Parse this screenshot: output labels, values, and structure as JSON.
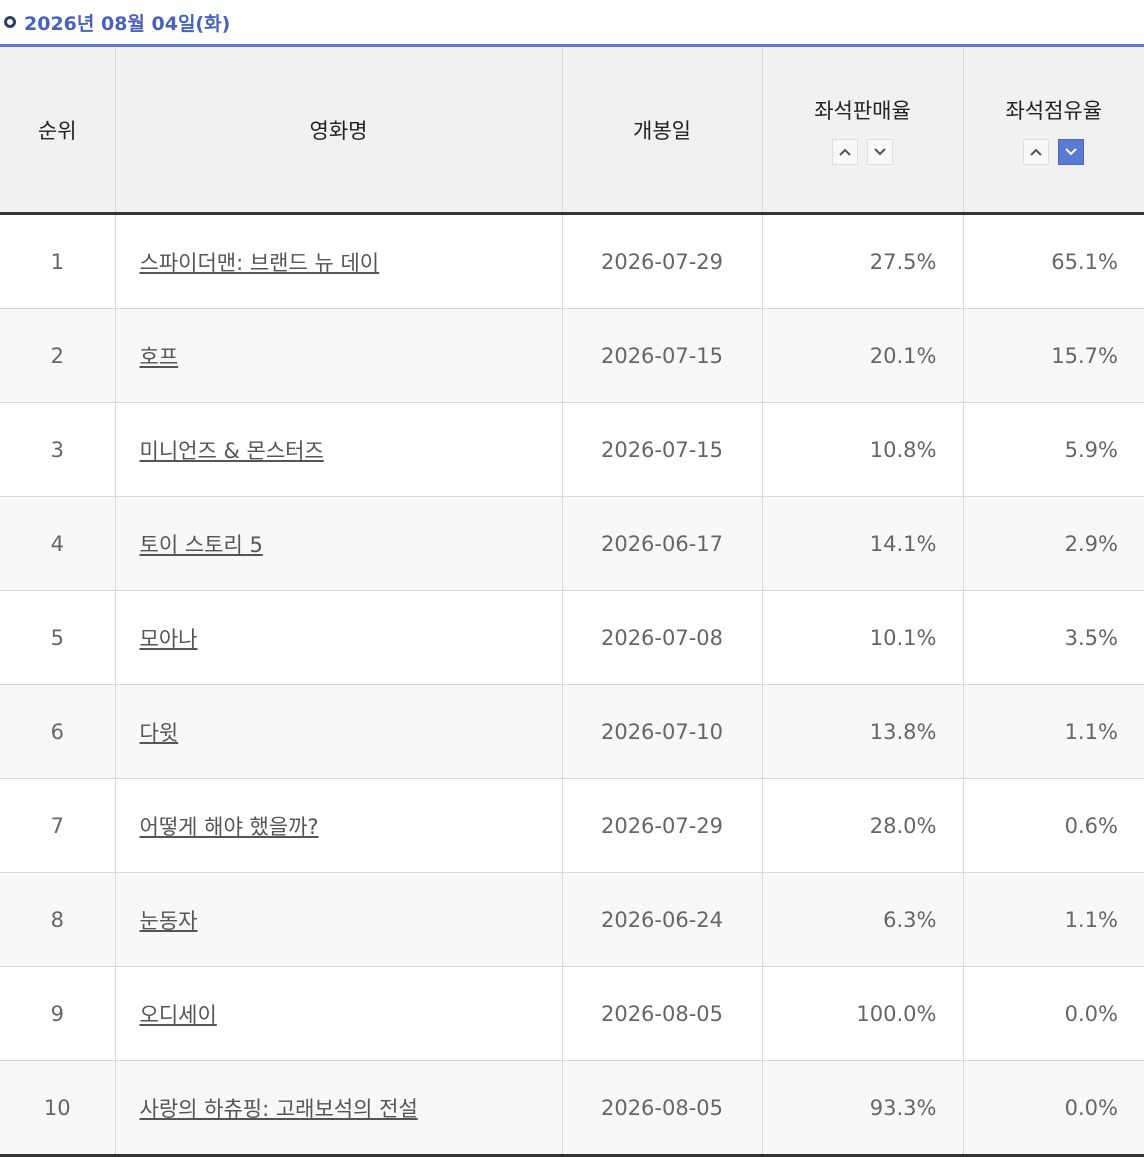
{
  "header": {
    "title": "2026년 08월 04일(화)"
  },
  "table": {
    "columns": [
      "순위",
      "영화명",
      "개봉일",
      "좌석판매율",
      "좌석점유율"
    ],
    "rows": [
      [
        "1",
        "스파이더맨: 브랜드 뉴 데이",
        "2026-07-29",
        "27.5%",
        "65.1%"
      ],
      [
        "2",
        "호프",
        "2026-07-15",
        "20.1%",
        "15.7%"
      ],
      [
        "3",
        "미니언즈 & 몬스터즈",
        "2026-07-15",
        "10.8%",
        "5.9%"
      ],
      [
        "4",
        "토이 스토리 5",
        "2026-06-17",
        "14.1%",
        "2.9%"
      ],
      [
        "5",
        "모아나",
        "2026-07-08",
        "10.1%",
        "3.5%"
      ],
      [
        "6",
        "다윗",
        "2026-07-10",
        "13.8%",
        "1.1%"
      ],
      [
        "7",
        "어떻게 해야 했을까?",
        "2026-07-29",
        "28.0%",
        "0.6%"
      ],
      [
        "8",
        "눈동자",
        "2026-06-24",
        "6.3%",
        "1.1%"
      ],
      [
        "9",
        "오디세이",
        "2026-08-05",
        "100.0%",
        "0.0%"
      ],
      [
        "10",
        "사랑의 하츄핑: 고래보석의 전설",
        "2026-08-05",
        "93.3%",
        "0.0%"
      ]
    ]
  }
}
